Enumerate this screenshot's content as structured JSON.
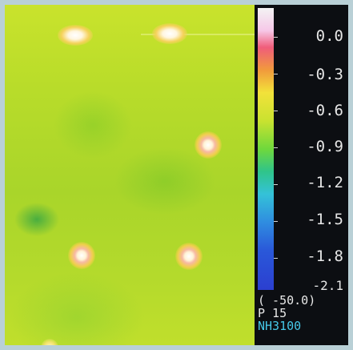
{
  "scale": {
    "labels": [
      "0.0",
      "-0.3",
      "-0.6",
      "-0.9",
      "-1.2",
      "-1.5",
      "-1.8",
      "-2.1"
    ]
  },
  "readout": {
    "line1": "( -50.0)",
    "line2": "P   15",
    "line3": "NH3100"
  },
  "colors": {
    "background_field": "#b8dc2a",
    "panel": "#0c0e12",
    "frame": "#b9d0d6"
  }
}
